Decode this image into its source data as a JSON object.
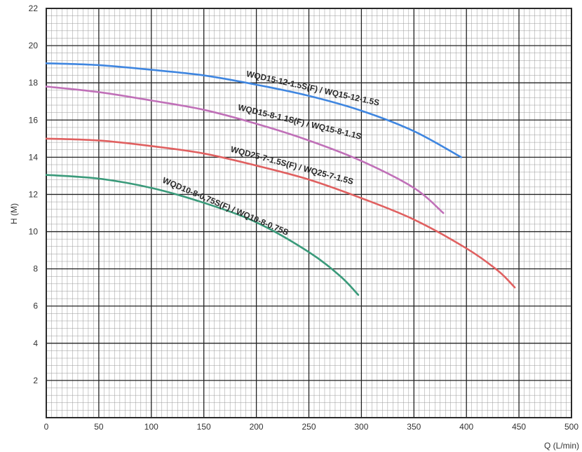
{
  "chart_data": {
    "type": "line",
    "title": "",
    "xlabel": "Q (L/min)",
    "ylabel": "H (M)",
    "xlim": [
      0,
      500
    ],
    "ylim": [
      0,
      22
    ],
    "x_ticks": [
      0,
      50,
      100,
      150,
      200,
      250,
      300,
      350,
      400,
      450,
      500
    ],
    "y_ticks": [
      2,
      4,
      6,
      8,
      10,
      12,
      14,
      16,
      18,
      20,
      22
    ],
    "x_tick_labels": [
      "0",
      "50",
      "100",
      "150",
      "200",
      "250",
      "300",
      "350",
      "400",
      "450",
      "500"
    ],
    "y_tick_labels": [
      "2",
      "4",
      "6",
      "8",
      "10",
      "12",
      "14",
      "16",
      "18",
      "20",
      "22"
    ],
    "grid": true,
    "minor_grid": true,
    "legend": "none",
    "series": [
      {
        "name": "WQD15-12-1.5S(F) / WQ15-12-1.5S",
        "color": "#3f86e0",
        "points": [
          [
            0,
            19.05
          ],
          [
            50,
            18.95
          ],
          [
            100,
            18.7
          ],
          [
            150,
            18.4
          ],
          [
            200,
            17.9
          ],
          [
            250,
            17.3
          ],
          [
            300,
            16.5
          ],
          [
            350,
            15.4
          ],
          [
            395,
            14.0
          ]
        ]
      },
      {
        "name": "WQD15-8-1.1S(F) / WQ15-8-1.1S",
        "color": "#c070b8",
        "points": [
          [
            0,
            17.8
          ],
          [
            50,
            17.5
          ],
          [
            100,
            17.05
          ],
          [
            150,
            16.55
          ],
          [
            200,
            15.8
          ],
          [
            250,
            14.9
          ],
          [
            300,
            13.8
          ],
          [
            350,
            12.35
          ],
          [
            378,
            11.0
          ]
        ]
      },
      {
        "name": "WQD25-7-1.5S(F) / WQ25-7-1.5S",
        "color": "#e06060",
        "points": [
          [
            0,
            15.0
          ],
          [
            50,
            14.9
          ],
          [
            100,
            14.6
          ],
          [
            150,
            14.2
          ],
          [
            200,
            13.55
          ],
          [
            250,
            12.8
          ],
          [
            300,
            11.8
          ],
          [
            350,
            10.65
          ],
          [
            400,
            9.1
          ],
          [
            430,
            7.9
          ],
          [
            446,
            7.0
          ]
        ]
      },
      {
        "name": "WQD10-8-0.75S(F) / WQ10-8-0.75S",
        "color": "#3a9a7a",
        "points": [
          [
            0,
            13.05
          ],
          [
            50,
            12.85
          ],
          [
            100,
            12.35
          ],
          [
            150,
            11.55
          ],
          [
            200,
            10.5
          ],
          [
            250,
            8.9
          ],
          [
            280,
            7.6
          ],
          [
            297,
            6.6
          ]
        ]
      }
    ],
    "annotations": [
      "WQD15-12-1.5S(F) / WQ15-12-1.5S",
      "WQD15-8-1.1S(F) / WQ15-8-1.1S",
      "WQD25-7-1.5S(F) / WQ25-7-1.5S",
      "WQD10-8-0.75S(F) / WQ10-8-0.75S"
    ]
  }
}
